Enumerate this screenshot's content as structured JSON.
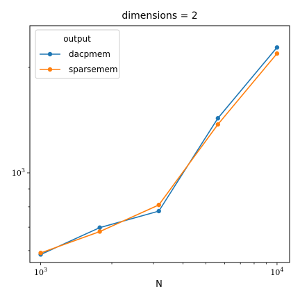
{
  "chart_data": {
    "type": "line",
    "title": "dimensions = 2",
    "xlabel": "N",
    "ylabel": "",
    "x_scale": "log",
    "y_scale": "log",
    "xlim": [
      900,
      11300
    ],
    "ylim": [
      555,
      2630
    ],
    "x_ticks": [
      {
        "value": 1000,
        "base": "10",
        "exp": "3"
      },
      {
        "value": 10000,
        "base": "10",
        "exp": "4"
      }
    ],
    "y_ticks": [
      {
        "value": 1000,
        "base": "10",
        "exp": "3"
      }
    ],
    "grid": false,
    "legend": {
      "title": "output",
      "placement": "top-left"
    },
    "series": [
      {
        "name": "dacpmem",
        "color": "#1f77b4",
        "x": [
          1000,
          1778,
          3162,
          5623,
          10000
        ],
        "y": [
          585,
          698,
          778,
          1432,
          2280
        ]
      },
      {
        "name": "sparsemem",
        "color": "#ff7f0e",
        "x": [
          1000,
          1778,
          3162,
          5623,
          10000
        ],
        "y": [
          591,
          680,
          810,
          1375,
          2190
        ]
      }
    ]
  }
}
